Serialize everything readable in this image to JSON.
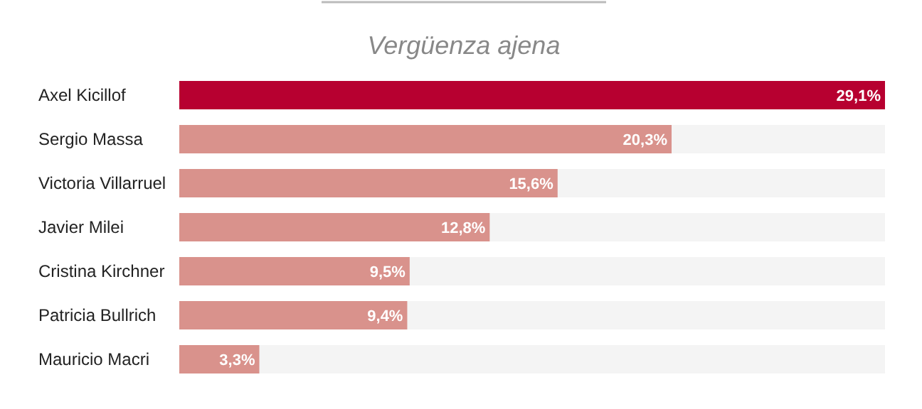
{
  "chart_data": {
    "type": "bar",
    "orientation": "horizontal",
    "title": "Vergüenza ajena",
    "categories": [
      "Axel Kicillof",
      "Sergio Massa",
      "Victoria Villarruel",
      "Javier Milei",
      "Cristina Kirchner",
      "Patricia Bullrich",
      "Mauricio Macri"
    ],
    "values": [
      29.1,
      20.3,
      15.6,
      12.8,
      9.5,
      9.4,
      3.3
    ],
    "value_labels": [
      "29,1%",
      "20,3%",
      "15,6%",
      "12,8%",
      "9,5%",
      "9,4%",
      "3,3%"
    ],
    "colors": [
      "#b70030",
      "#d9928c",
      "#d9928c",
      "#d9928c",
      "#d9928c",
      "#d9928c",
      "#d9928c"
    ],
    "xlim": [
      0,
      29.1
    ],
    "tick_labels": "y"
  }
}
